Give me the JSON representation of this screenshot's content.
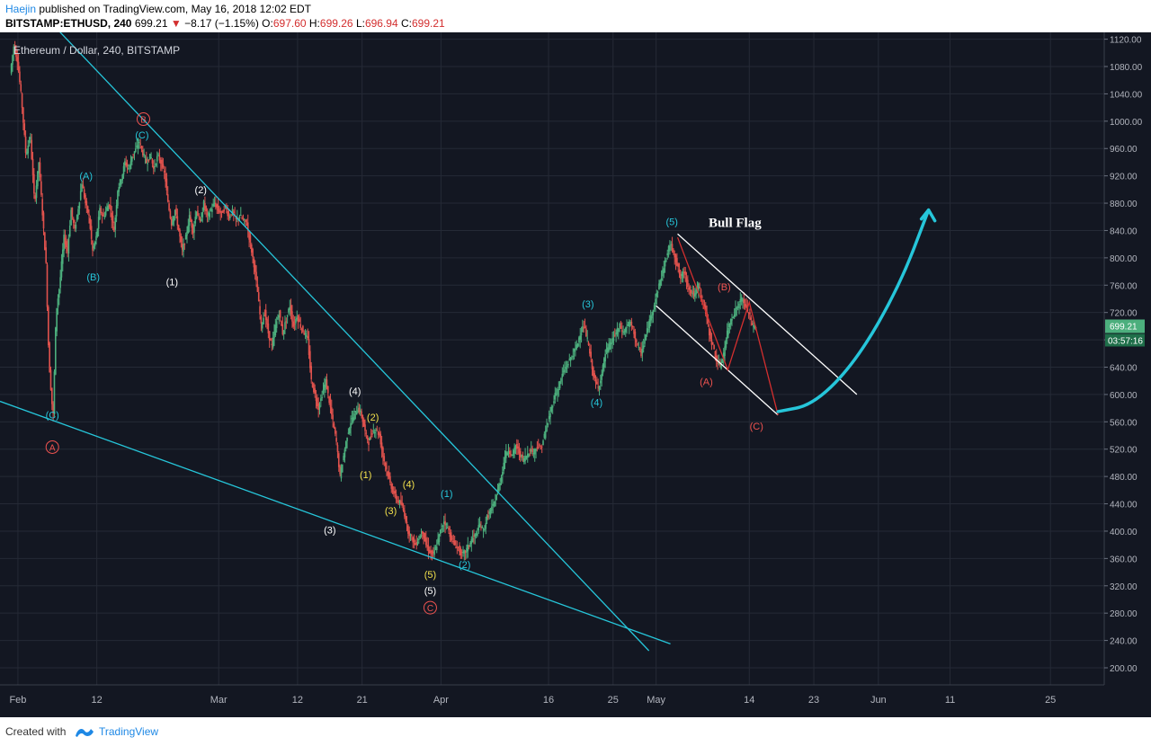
{
  "header": {
    "author": "Haejin",
    "published_text": " published on TradingView.com, May 16, 2018 12:02 EDT",
    "symbol": "BITSTAMP:ETHUSD, 240",
    "last": "699.21",
    "change": "−8.17 (−1.15%)",
    "o_label": "O:",
    "o_value": "697.60",
    "h_label": "H:",
    "h_value": "699.26",
    "l_label": "L:",
    "l_value": "696.94",
    "c_label": "C:",
    "c_value": "699.21"
  },
  "footer": {
    "created_with": "Created with",
    "brand": "TradingView"
  },
  "chart_data": {
    "type": "candlestick",
    "title": "Ethereum / Dollar, 240, BITSTAMP",
    "y_ticks": [
      1120,
      1080,
      1040,
      1000,
      960,
      920,
      880,
      840,
      800,
      760,
      720,
      680,
      640,
      600,
      560,
      520,
      480,
      440,
      400,
      360,
      320,
      280,
      240,
      200
    ],
    "y_tick_labels": [
      "1120.00",
      "1080.00",
      "1040.00",
      "1000.00",
      "960.00",
      "920.00",
      "880.00",
      "840.00",
      "800.00",
      "760.00",
      "720.00",
      "680.00",
      "640.00",
      "600.00",
      "560.00",
      "520.00",
      "480.00",
      "440.00",
      "400.00",
      "360.00",
      "320.00",
      "280.00",
      "240.00",
      "200.00"
    ],
    "ylim": [
      175,
      1130
    ],
    "x_ticks": [
      {
        "day": 1,
        "label": "Feb"
      },
      {
        "day": 12,
        "label": "12"
      },
      {
        "day": 29,
        "label": "Mar"
      },
      {
        "day": 40,
        "label": "12"
      },
      {
        "day": 49,
        "label": "21"
      },
      {
        "day": 60,
        "label": "Apr"
      },
      {
        "day": 75,
        "label": "16"
      },
      {
        "day": 84,
        "label": "25"
      },
      {
        "day": 90,
        "label": "May"
      },
      {
        "day": 103,
        "label": "14"
      },
      {
        "day": 112,
        "label": "23"
      },
      {
        "day": 121,
        "label": "Jun"
      },
      {
        "day": 131,
        "label": "11"
      },
      {
        "day": 145,
        "label": "25"
      }
    ],
    "xlim": [
      -1.5,
      152.5
    ],
    "current_price": 699.21,
    "current_price_label": "699.21",
    "countdown_label": "03:57:16",
    "price_path": [
      [
        0,
        1070
      ],
      [
        0.5,
        1110
      ],
      [
        1,
        1090
      ],
      [
        1.6,
        1030
      ],
      [
        2.2,
        950
      ],
      [
        2.8,
        980
      ],
      [
        3.4,
        880
      ],
      [
        4,
        940
      ],
      [
        4.6,
        850
      ],
      [
        5,
        790
      ],
      [
        5.4,
        650
      ],
      [
        5.8,
        590
      ],
      [
        6,
        570
      ],
      [
        6.4,
        720
      ],
      [
        6.9,
        760
      ],
      [
        7.5,
        830
      ],
      [
        8,
        810
      ],
      [
        8.5,
        870
      ],
      [
        9,
        840
      ],
      [
        9.6,
        880
      ],
      [
        10,
        910
      ],
      [
        10.5,
        880
      ],
      [
        11,
        860
      ],
      [
        11.5,
        810
      ],
      [
        12,
        830
      ],
      [
        12.5,
        870
      ],
      [
        13,
        860
      ],
      [
        13.8,
        880
      ],
      [
        14.5,
        840
      ],
      [
        15,
        900
      ],
      [
        15.6,
        920
      ],
      [
        16,
        940
      ],
      [
        16.6,
        930
      ],
      [
        17,
        950
      ],
      [
        17.6,
        960
      ],
      [
        18,
        970
      ],
      [
        18.6,
        950
      ],
      [
        19,
        940
      ],
      [
        19.6,
        950
      ],
      [
        20,
        930
      ],
      [
        20.6,
        950
      ],
      [
        21,
        940
      ],
      [
        21.6,
        920
      ],
      [
        22,
        880
      ],
      [
        22.5,
        850
      ],
      [
        23,
        870
      ],
      [
        23.5,
        840
      ],
      [
        24,
        810
      ],
      [
        24.5,
        830
      ],
      [
        25,
        860
      ],
      [
        25.5,
        840
      ],
      [
        26,
        870
      ],
      [
        26.5,
        850
      ],
      [
        27,
        880
      ],
      [
        27.5,
        860
      ],
      [
        28,
        870
      ],
      [
        28.5,
        880
      ],
      [
        29,
        870
      ],
      [
        29.5,
        865
      ],
      [
        30,
        875
      ],
      [
        30.5,
        860
      ],
      [
        31,
        868
      ],
      [
        31.5,
        855
      ],
      [
        32,
        862
      ],
      [
        32.5,
        855
      ],
      [
        33,
        850
      ],
      [
        33.5,
        820
      ],
      [
        34,
        790
      ],
      [
        34.5,
        750
      ],
      [
        35,
        700
      ],
      [
        35.5,
        720
      ],
      [
        36,
        690
      ],
      [
        36.5,
        670
      ],
      [
        37,
        700
      ],
      [
        37.5,
        720
      ],
      [
        38,
        690
      ],
      [
        38.5,
        710
      ],
      [
        39,
        730
      ],
      [
        39.5,
        700
      ],
      [
        40,
        715
      ],
      [
        40.5,
        700
      ],
      [
        41,
        690
      ],
      [
        41.5,
        680
      ],
      [
        42,
        620
      ],
      [
        42.5,
        600
      ],
      [
        43,
        580
      ],
      [
        43.5,
        600
      ],
      [
        44,
        620
      ],
      [
        44.5,
        590
      ],
      [
        45,
        560
      ],
      [
        45.5,
        530
      ],
      [
        46,
        480
      ],
      [
        46.5,
        510
      ],
      [
        47,
        540
      ],
      [
        47.5,
        560
      ],
      [
        48,
        570
      ],
      [
        48.5,
        580
      ],
      [
        49,
        570
      ],
      [
        49.5,
        545
      ],
      [
        50,
        530
      ],
      [
        50.5,
        545
      ],
      [
        51,
        550
      ],
      [
        51.5,
        540
      ],
      [
        52,
        510
      ],
      [
        52.5,
        490
      ],
      [
        53,
        470
      ],
      [
        53.5,
        455
      ],
      [
        54,
        445
      ],
      [
        54.5,
        440
      ],
      [
        55,
        425
      ],
      [
        55.5,
        400
      ],
      [
        56,
        390
      ],
      [
        56.5,
        380
      ],
      [
        57,
        390
      ],
      [
        57.5,
        400
      ],
      [
        58,
        380
      ],
      [
        58.5,
        370
      ],
      [
        59,
        365
      ],
      [
        59.5,
        380
      ],
      [
        60,
        400
      ],
      [
        60.5,
        415
      ],
      [
        61,
        405
      ],
      [
        61.5,
        390
      ],
      [
        62,
        380
      ],
      [
        62.5,
        375
      ],
      [
        63,
        365
      ],
      [
        63.5,
        370
      ],
      [
        64,
        380
      ],
      [
        64.5,
        390
      ],
      [
        65,
        395
      ],
      [
        65.5,
        410
      ],
      [
        66,
        400
      ],
      [
        66.5,
        420
      ],
      [
        67,
        430
      ],
      [
        67.5,
        440
      ],
      [
        68,
        460
      ],
      [
        68.5,
        480
      ],
      [
        69,
        510
      ],
      [
        69.5,
        520
      ],
      [
        70,
        510
      ],
      [
        70.5,
        525
      ],
      [
        71,
        515
      ],
      [
        71.5,
        505
      ],
      [
        72,
        510
      ],
      [
        72.5,
        520
      ],
      [
        73,
        515
      ],
      [
        73.5,
        525
      ],
      [
        74,
        520
      ],
      [
        74.5,
        540
      ],
      [
        75,
        560
      ],
      [
        75.5,
        580
      ],
      [
        76,
        600
      ],
      [
        76.5,
        610
      ],
      [
        77,
        630
      ],
      [
        77.5,
        640
      ],
      [
        78,
        650
      ],
      [
        78.5,
        660
      ],
      [
        79,
        670
      ],
      [
        79.5,
        690
      ],
      [
        80,
        700
      ],
      [
        80.5,
        680
      ],
      [
        81,
        650
      ],
      [
        81.5,
        620
      ],
      [
        82,
        610
      ],
      [
        82.5,
        630
      ],
      [
        83,
        660
      ],
      [
        83.5,
        670
      ],
      [
        84,
        680
      ],
      [
        84.5,
        690
      ],
      [
        85,
        700
      ],
      [
        85.5,
        690
      ],
      [
        86,
        700
      ],
      [
        86.5,
        705
      ],
      [
        87,
        690
      ],
      [
        87.5,
        670
      ],
      [
        88,
        660
      ],
      [
        88.5,
        680
      ],
      [
        89,
        700
      ],
      [
        89.5,
        720
      ],
      [
        90,
        740
      ],
      [
        90.5,
        760
      ],
      [
        91,
        780
      ],
      [
        91.5,
        800
      ],
      [
        92,
        820
      ],
      [
        92.5,
        810
      ],
      [
        93,
        790
      ],
      [
        93.5,
        770
      ],
      [
        94,
        780
      ],
      [
        94.5,
        760
      ],
      [
        95,
        750
      ],
      [
        95.5,
        745
      ],
      [
        96,
        760
      ],
      [
        96.5,
        740
      ],
      [
        97,
        720
      ],
      [
        97.5,
        690
      ],
      [
        98,
        670
      ],
      [
        98.5,
        650
      ],
      [
        99,
        640
      ],
      [
        99.5,
        660
      ],
      [
        100,
        690
      ],
      [
        100.5,
        710
      ],
      [
        101,
        720
      ],
      [
        101.5,
        730
      ],
      [
        102,
        740
      ],
      [
        102.5,
        730
      ],
      [
        103,
        720
      ],
      [
        103.5,
        700
      ],
      [
        104,
        699.21
      ]
    ],
    "trendlines": [
      {
        "name": "upper-wedge-line",
        "color": "#26c6da",
        "from": [
          6,
          1140
        ],
        "to": [
          89,
          225
        ]
      },
      {
        "name": "lower-wedge-line",
        "color": "#26c6da",
        "from": [
          -1.5,
          590
        ],
        "to": [
          92,
          235
        ]
      },
      {
        "name": "flag-upper-line",
        "color": "#ffffff",
        "from": [
          93,
          835
        ],
        "to": [
          118,
          600
        ]
      },
      {
        "name": "flag-lower-line",
        "color": "#ffffff",
        "from": [
          90,
          730
        ],
        "to": [
          107,
          570
        ]
      }
    ],
    "projection_red": [
      [
        93,
        830
      ],
      [
        100,
        636
      ],
      [
        103,
        735
      ],
      [
        107,
        570
      ]
    ],
    "projection_cyan": [
      [
        107,
        575
      ],
      [
        112,
        585
      ],
      [
        118,
        650
      ],
      [
        124,
        760
      ],
      [
        128,
        870
      ]
    ],
    "annotations": [
      {
        "text": "(C)",
        "x": 5.8,
        "y": 570,
        "color": "#26c6da",
        "circled": false
      },
      {
        "text": "A",
        "x": 5.8,
        "y": 523,
        "color": "#ef5350",
        "circled": true
      },
      {
        "text": "B",
        "x": 18.5,
        "y": 1003,
        "color": "#ef5350",
        "circled": true
      },
      {
        "text": "(C)",
        "x": 18.3,
        "y": 980,
        "color": "#26c6da",
        "circled": false
      },
      {
        "text": "(A)",
        "x": 10.5,
        "y": 920,
        "color": "#26c6da",
        "circled": false
      },
      {
        "text": "(B)",
        "x": 11.5,
        "y": 772,
        "color": "#26c6da",
        "circled": false
      },
      {
        "text": "(2)",
        "x": 26.5,
        "y": 900,
        "color": "#ffffff",
        "circled": false
      },
      {
        "text": "(1)",
        "x": 22.5,
        "y": 765,
        "color": "#ffffff",
        "circled": false
      },
      {
        "text": "(3)",
        "x": 44.5,
        "y": 402,
        "color": "#ffffff",
        "circled": false
      },
      {
        "text": "(4)",
        "x": 48,
        "y": 605,
        "color": "#ffffff",
        "circled": false
      },
      {
        "text": "(2)",
        "x": 50.5,
        "y": 567,
        "color": "#f2e14c",
        "circled": false
      },
      {
        "text": "(1)",
        "x": 49.5,
        "y": 483,
        "color": "#f2e14c",
        "circled": false
      },
      {
        "text": "(4)",
        "x": 55.5,
        "y": 469,
        "color": "#f2e14c",
        "circled": false
      },
      {
        "text": "(3)",
        "x": 53,
        "y": 430,
        "color": "#f2e14c",
        "circled": false
      },
      {
        "text": "(5)",
        "x": 58.5,
        "y": 337,
        "color": "#f2e14c",
        "circled": false
      },
      {
        "text": "(5)",
        "x": 58.5,
        "y": 313,
        "color": "#ffffff",
        "circled": false
      },
      {
        "text": "C",
        "x": 58.5,
        "y": 288,
        "color": "#ef5350",
        "circled": true
      },
      {
        "text": "(1)",
        "x": 60.8,
        "y": 455,
        "color": "#26c6da",
        "circled": false
      },
      {
        "text": "(2)",
        "x": 63.3,
        "y": 351,
        "color": "#26c6da",
        "circled": false
      },
      {
        "text": "(3)",
        "x": 80.5,
        "y": 733,
        "color": "#26c6da",
        "circled": false
      },
      {
        "text": "(4)",
        "x": 81.7,
        "y": 589,
        "color": "#26c6da",
        "circled": false
      },
      {
        "text": "(5)",
        "x": 92.2,
        "y": 853,
        "color": "#26c6da",
        "circled": false
      },
      {
        "text": "(B)",
        "x": 99.5,
        "y": 758,
        "color": "#ef5350",
        "circled": false
      },
      {
        "text": "(A)",
        "x": 97,
        "y": 619,
        "color": "#ef5350",
        "circled": false
      },
      {
        "text": "(C)",
        "x": 104,
        "y": 554,
        "color": "#ef5350",
        "circled": false
      }
    ],
    "pattern_label": {
      "text": "Bull Flag",
      "x": 101,
      "y": 845
    }
  }
}
